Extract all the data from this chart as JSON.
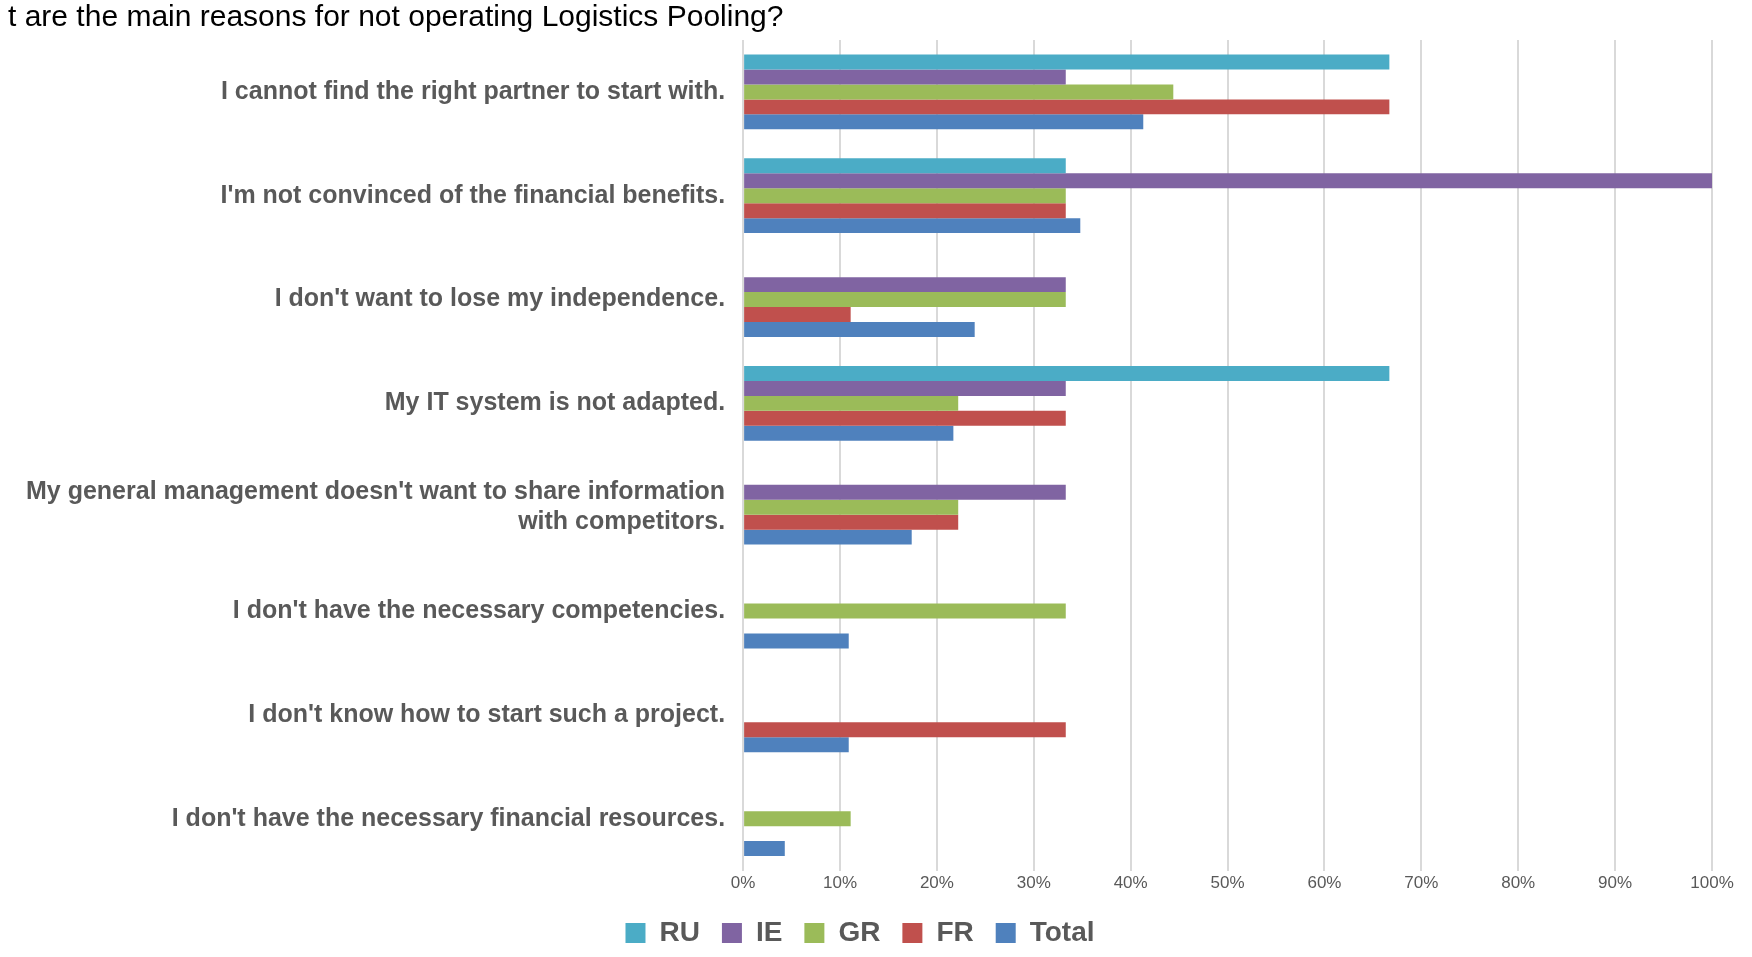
{
  "chart_data": {
    "type": "bar",
    "orientation": "horizontal",
    "title": "t are the main reasons for not operating Logistics Pooling?",
    "categories": [
      "I cannot find the right partner to start with.",
      "I'm not convinced of the financial benefits.",
      "I don't want to lose my independence.",
      "My IT system is not adapted.",
      "My general management doesn't want to share information with competitors.",
      "I don't have the necessary competencies.",
      "I don't know how to start such a project.",
      "I don't have the necessary financial resources."
    ],
    "series": [
      {
        "name": "RU",
        "color": "#4bacc6",
        "values": [
          66.7,
          33.3,
          0,
          66.7,
          0,
          0,
          0,
          0
        ]
      },
      {
        "name": "IE",
        "color": "#8064a2",
        "values": [
          33.3,
          100,
          33.3,
          33.3,
          33.3,
          0,
          0,
          0
        ]
      },
      {
        "name": "GR",
        "color": "#9bbb59",
        "values": [
          44.4,
          33.3,
          33.3,
          22.2,
          22.2,
          33.3,
          0,
          11.1
        ]
      },
      {
        "name": "FR",
        "color": "#c0504d",
        "values": [
          66.7,
          33.3,
          11.1,
          33.3,
          22.2,
          0,
          33.3,
          0
        ]
      },
      {
        "name": "Total",
        "color": "#4f81bd",
        "values": [
          41.3,
          34.8,
          23.9,
          21.7,
          17.4,
          10.9,
          10.9,
          4.3
        ]
      }
    ],
    "xlim": [
      0,
      100
    ],
    "xticks": [
      {
        "value": 0,
        "label": "0%"
      },
      {
        "value": 10,
        "label": "10%"
      },
      {
        "value": 20,
        "label": "20%"
      },
      {
        "value": 30,
        "label": "30%"
      },
      {
        "value": 40,
        "label": "40%"
      },
      {
        "value": 50,
        "label": "50%"
      },
      {
        "value": 60,
        "label": "60%"
      },
      {
        "value": 70,
        "label": "70%"
      },
      {
        "value": 80,
        "label": "80%"
      },
      {
        "value": 90,
        "label": "90%"
      },
      {
        "value": 100,
        "label": "100%"
      }
    ],
    "grid": "x",
    "legend": "bottom"
  }
}
